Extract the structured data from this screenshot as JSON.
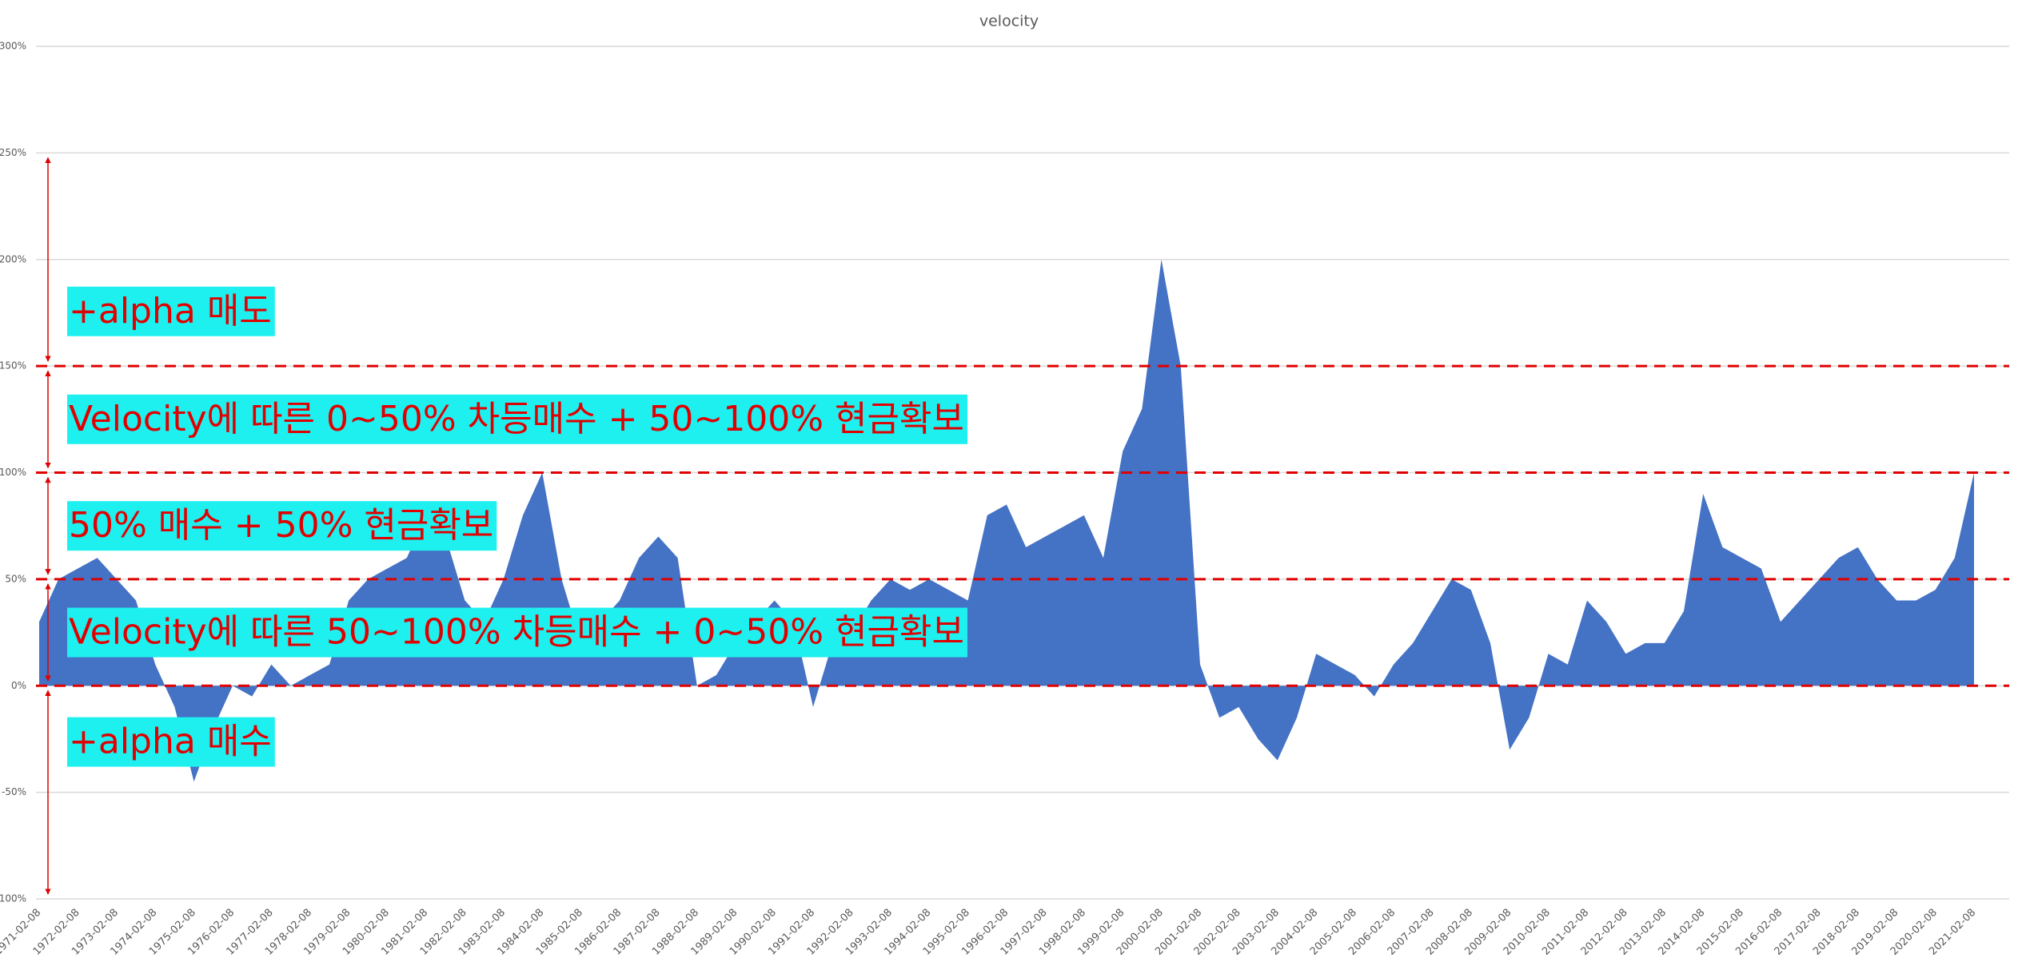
{
  "chart_data": {
    "type": "area",
    "title": "velocity",
    "categories": [
      "1971-02-08",
      null,
      "1972-02-08",
      null,
      "1973-02-08",
      null,
      "1974-02-08",
      null,
      "1975-02-08",
      null,
      "1976-02-08",
      null,
      "1977-02-08",
      null,
      "1978-02-08",
      null,
      "1979-02-08",
      null,
      "1980-02-08",
      null,
      "1981-02-08",
      null,
      "1982-02-08",
      null,
      "1983-02-08",
      null,
      "1984-02-08",
      null,
      "1985-02-08",
      null,
      "1986-02-08",
      null,
      "1987-02-08",
      null,
      "1988-02-08",
      null,
      "1989-02-08",
      null,
      "1990-02-08",
      null,
      "1991-02-08",
      null,
      "1992-02-08",
      null,
      "1993-02-08",
      null,
      "1994-02-08",
      null,
      "1995-02-08",
      null,
      "1996-02-08",
      null,
      "1997-02-08",
      null,
      "1998-02-08",
      null,
      "1999-02-08",
      null,
      "2000-02-08",
      null,
      "2001-02-08",
      null,
      "2002-02-08",
      null,
      "2003-02-08",
      null,
      "2004-02-08",
      null,
      "2005-02-08",
      null,
      "2006-02-08",
      null,
      "2007-02-08",
      null,
      "2008-02-08",
      null,
      "2009-02-08",
      null,
      "2010-02-08",
      null,
      "2011-02-08",
      null,
      "2012-02-08",
      null,
      "2013-02-08",
      null,
      "2014-02-08",
      null,
      "2015-02-08",
      null,
      "2016-02-08",
      null,
      "2017-02-08",
      null,
      "2018-02-08",
      null,
      "2019-02-08",
      null,
      "2020-02-08",
      null,
      "2021-02-08"
    ],
    "values": [
      30,
      50,
      55,
      60,
      50,
      40,
      10,
      -10,
      -45,
      -20,
      0,
      -5,
      10,
      0,
      5,
      10,
      40,
      50,
      55,
      60,
      80,
      70,
      40,
      30,
      50,
      80,
      100,
      50,
      20,
      30,
      40,
      60,
      70,
      60,
      0,
      5,
      20,
      30,
      40,
      30,
      -10,
      20,
      25,
      40,
      50,
      45,
      50,
      45,
      40,
      80,
      85,
      65,
      70,
      75,
      80,
      60,
      110,
      130,
      200,
      150,
      10,
      -15,
      -10,
      -25,
      -35,
      -15,
      15,
      10,
      5,
      -5,
      10,
      20,
      35,
      50,
      45,
      20,
      -30,
      -15,
      15,
      10,
      40,
      30,
      15,
      20,
      20,
      35,
      90,
      65,
      60,
      55,
      30,
      40,
      50,
      60,
      65,
      50,
      40,
      40,
      45,
      60,
      100
    ],
    "color": "#4472c4",
    "ylim": [
      -100,
      300
    ],
    "yticks": [
      {
        "value": -100,
        "label": "-100%"
      },
      {
        "value": -50,
        "label": "-50%"
      },
      {
        "value": 0,
        "label": "0%"
      },
      {
        "value": 50,
        "label": "50%"
      },
      {
        "value": 100,
        "label": "100%"
      },
      {
        "value": 150,
        "label": "150%"
      },
      {
        "value": 200,
        "label": "200%"
      },
      {
        "value": 250,
        "label": "250%"
      },
      {
        "value": 300,
        "label": "300%"
      }
    ],
    "grid": true,
    "reference_lines": [
      150,
      100,
      50,
      0
    ],
    "annotations": [
      {
        "text": "+alpha 매도",
        "range": [
          250,
          150
        ]
      },
      {
        "text": "Velocity에 따른 0~50% 차등매수 + 50~100% 현금확보",
        "range": [
          150,
          100
        ]
      },
      {
        "text": "50% 매수 + 50% 현금확보",
        "range": [
          100,
          50
        ]
      },
      {
        "text": "Velocity에 따른 50~100% 차등매수 + 0~50% 현금확보",
        "range": [
          50,
          0
        ]
      },
      {
        "text": "+alpha 매수",
        "range": [
          0,
          -100
        ]
      }
    ]
  }
}
